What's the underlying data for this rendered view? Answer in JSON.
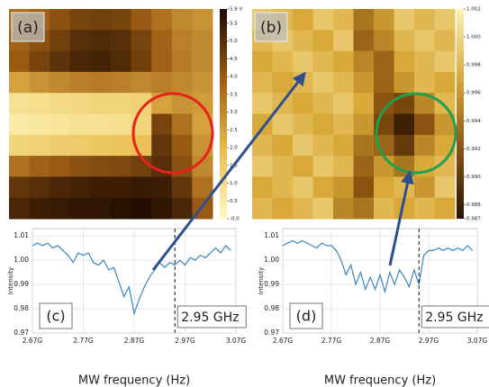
{
  "chart_data": [
    {
      "type": "heatmap",
      "panel_label": "(a)",
      "clim": [
        0,
        5.9
      ],
      "colormap": [
        "#fffbc4",
        "#e9bb4c",
        "#9c5c14",
        "#1c0900"
      ],
      "colorbar_ticks": [
        {
          "value": 0,
          "label": "-0.0"
        },
        0.5,
        {
          "value": 1,
          "label": "1.0"
        },
        1.5,
        {
          "value": 2,
          "label": "2.0"
        },
        2.5,
        {
          "value": 3,
          "label": "3.0"
        },
        3.5,
        {
          "value": 4,
          "label": "4.0"
        },
        4.5,
        {
          "value": 5,
          "label": "5.0"
        },
        5.5,
        {
          "value": 5.9,
          "label": "5.9 V"
        }
      ],
      "values": [
        [
          3.5,
          3.8,
          4.2,
          4.5,
          4.6,
          4.5,
          4.0,
          3.5,
          3.0,
          2.8
        ],
        [
          3.8,
          4.2,
          4.6,
          5.0,
          5.1,
          5.0,
          4.5,
          3.8,
          3.2,
          3.0
        ],
        [
          4.0,
          4.5,
          4.9,
          5.2,
          5.3,
          5.1,
          4.6,
          3.8,
          3.3,
          3.0
        ],
        [
          2.5,
          2.8,
          3.0,
          3.2,
          3.3,
          3.2,
          3.0,
          3.2,
          3.0,
          2.8
        ],
        [
          0.8,
          0.9,
          1.0,
          1.1,
          1.2,
          1.2,
          1.3,
          2.5,
          2.8,
          2.6
        ],
        [
          0.5,
          0.6,
          0.7,
          0.8,
          0.8,
          0.9,
          1.2,
          4.5,
          3.5,
          2.5
        ],
        [
          1.2,
          1.3,
          1.4,
          1.5,
          1.6,
          1.7,
          1.8,
          4.8,
          4.0,
          2.8
        ],
        [
          3.5,
          3.8,
          4.0,
          4.2,
          4.3,
          4.4,
          4.6,
          5.0,
          4.2,
          3.0
        ],
        [
          4.8,
          5.0,
          5.2,
          5.3,
          5.4,
          5.4,
          5.5,
          5.4,
          4.8,
          3.5
        ],
        [
          5.2,
          5.4,
          5.5,
          5.6,
          5.6,
          5.7,
          5.8,
          5.6,
          5.2,
          4.0
        ]
      ]
    },
    {
      "type": "heatmap",
      "panel_label": "(b)",
      "clim": [
        0.987,
        1.002
      ],
      "colormap": [
        "#2a1200",
        "#8a5410",
        "#d8a838",
        "#fff2b4"
      ],
      "colorbar_ticks": [
        0.987,
        0.988,
        {
          "value": 0.99,
          "label": "0.990"
        },
        0.992,
        0.994,
        0.996,
        0.998,
        {
          "value": 1,
          "label": "1.000"
        },
        1.002
      ],
      "values": [
        [
          0.999,
          0.998,
          0.997,
          0.999,
          0.998,
          0.994,
          0.996,
          0.999,
          0.998,
          0.999
        ],
        [
          0.998,
          0.999,
          0.998,
          0.997,
          0.999,
          0.993,
          0.995,
          0.998,
          0.999,
          0.998
        ],
        [
          0.997,
          0.998,
          0.999,
          0.998,
          0.997,
          0.995,
          0.993,
          0.997,
          0.998,
          0.999
        ],
        [
          0.998,
          0.997,
          0.998,
          0.999,
          0.998,
          0.996,
          0.993,
          0.996,
          0.998,
          0.997
        ],
        [
          0.999,
          0.998,
          0.997,
          0.998,
          0.999,
          0.997,
          0.992,
          0.991,
          0.995,
          0.998
        ],
        [
          0.997,
          0.999,
          0.998,
          0.997,
          0.998,
          0.996,
          0.991,
          0.988,
          0.992,
          0.996
        ],
        [
          0.998,
          0.997,
          0.999,
          0.998,
          0.997,
          0.994,
          0.993,
          0.99,
          0.995,
          0.997
        ],
        [
          0.999,
          0.998,
          0.997,
          0.999,
          0.998,
          0.993,
          0.996,
          0.994,
          0.997,
          0.998
        ],
        [
          0.997,
          0.998,
          0.999,
          0.997,
          0.996,
          0.992,
          0.997,
          0.998,
          0.996,
          0.999
        ],
        [
          0.998,
          0.997,
          0.998,
          0.999,
          0.995,
          0.994,
          0.998,
          0.997,
          0.998,
          0.997
        ]
      ]
    },
    {
      "type": "line",
      "panel_label": "(c)",
      "xlabel": "MW frequency (Hz)",
      "ylabel": "Intensity",
      "color": "#3a86c0",
      "grid": true,
      "vline": {
        "value": 2950000000,
        "label": "2.95 GHz"
      },
      "xlim": [
        2670000000,
        3070000000
      ],
      "xticks": [
        {
          "value": 2670000000,
          "label": "2.67G"
        },
        {
          "value": 2770000000,
          "label": "2.77G"
        },
        {
          "value": 2870000000,
          "label": "2.87G"
        },
        {
          "value": 2970000000,
          "label": "2.97G"
        },
        {
          "value": 3070000000,
          "label": "3.07G"
        }
      ],
      "ylim": [
        0.97,
        1.013
      ],
      "yticks": [
        0.97,
        0.98,
        0.99,
        {
          "value": 1,
          "label": "1.00"
        },
        1.01
      ],
      "x": [
        2670000000,
        2680000000,
        2690000000,
        2700000000,
        2710000000,
        2720000000,
        2730000000,
        2740000000,
        2750000000,
        2760000000,
        2770000000,
        2780000000,
        2790000000,
        2800000000,
        2810000000,
        2820000000,
        2830000000,
        2840000000,
        2850000000,
        2860000000,
        2870000000,
        2880000000,
        2890000000,
        2900000000,
        2910000000,
        2920000000,
        2930000000,
        2940000000,
        2950000000,
        2960000000,
        2970000000,
        2980000000,
        2990000000,
        3000000000,
        3010000000,
        3020000000,
        3030000000,
        3040000000,
        3050000000,
        3060000000
      ],
      "values": [
        1.006,
        1.007,
        1.006,
        1.007,
        1.005,
        1.006,
        1.004,
        1.002,
        0.999,
        1.003,
        1.002,
        1.003,
        0.999,
        0.998,
        1.0,
        0.996,
        0.997,
        0.991,
        0.985,
        0.989,
        0.978,
        0.984,
        0.989,
        0.993,
        0.996,
        0.999,
        0.997,
        0.999,
        0.998,
        1.0,
        0.998,
        1.001,
        1.0,
        1.002,
        1.001,
        1.003,
        1.005,
        1.003,
        1.006,
        1.004
      ]
    },
    {
      "type": "line",
      "panel_label": "(d)",
      "xlabel": "MW frequency (Hz)",
      "ylabel": "Intensity",
      "color": "#3a86c0",
      "grid": true,
      "vline": {
        "value": 2950000000,
        "label": "2.95 GHz"
      },
      "xlim": [
        2670000000,
        3070000000
      ],
      "xticks": [
        {
          "value": 2670000000,
          "label": "2.67G"
        },
        {
          "value": 2770000000,
          "label": "2.77G"
        },
        {
          "value": 2870000000,
          "label": "2.87G"
        },
        {
          "value": 2970000000,
          "label": "2.97G"
        },
        {
          "value": 3070000000,
          "label": "3.07G"
        }
      ],
      "ylim": [
        0.97,
        1.013
      ],
      "yticks": [
        0.97,
        0.98,
        0.99,
        {
          "value": 1,
          "label": "1.00"
        },
        1.01
      ],
      "x": [
        2670000000,
        2680000000,
        2690000000,
        2700000000,
        2710000000,
        2720000000,
        2730000000,
        2740000000,
        2750000000,
        2760000000,
        2770000000,
        2780000000,
        2790000000,
        2800000000,
        2810000000,
        2820000000,
        2830000000,
        2840000000,
        2850000000,
        2860000000,
        2870000000,
        2880000000,
        2890000000,
        2900000000,
        2910000000,
        2920000000,
        2930000000,
        2940000000,
        2950000000,
        2960000000,
        2970000000,
        2980000000,
        2990000000,
        3000000000,
        3010000000,
        3020000000,
        3030000000,
        3040000000,
        3050000000,
        3060000000
      ],
      "values": [
        1.006,
        1.007,
        1.008,
        1.007,
        1.008,
        1.007,
        1.006,
        1.005,
        1.007,
        1.006,
        1.006,
        1.004,
        1.0,
        0.994,
        0.998,
        0.99,
        0.995,
        0.988,
        0.993,
        0.988,
        0.994,
        0.987,
        0.995,
        0.99,
        0.996,
        0.993,
        0.989,
        0.996,
        0.99,
        1.002,
        1.004,
        1.004,
        1.005,
        1.004,
        1.005,
        1.004,
        1.005,
        1.004,
        1.006,
        1.004
      ]
    }
  ]
}
